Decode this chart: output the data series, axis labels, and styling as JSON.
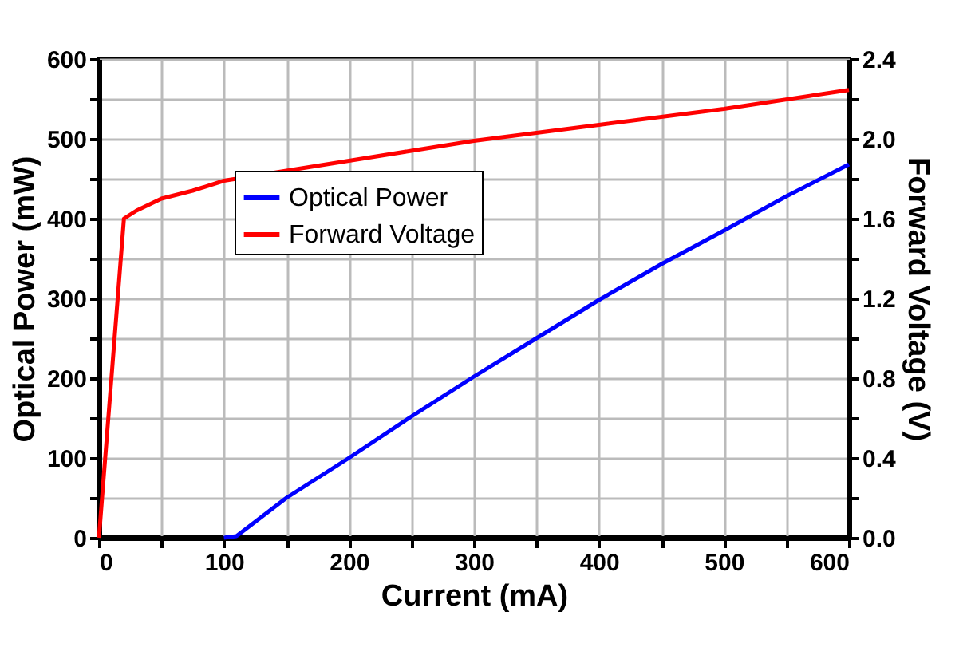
{
  "chart_data": {
    "type": "line",
    "xlabel": "Current (mA)",
    "ylabel": "Optical Power (mW)",
    "y2label": "Forward Voltage (V)",
    "xlim": [
      0,
      600
    ],
    "xticks": [
      0,
      {
        "value": 50,
        "label": null
      },
      100,
      {
        "value": 150,
        "label": null
      },
      200,
      {
        "value": 250,
        "label": null
      },
      300,
      {
        "value": 350,
        "label": null
      },
      400,
      {
        "value": 450,
        "label": null
      },
      500,
      {
        "value": 550,
        "label": null
      },
      600
    ],
    "ylim": [
      0,
      600
    ],
    "yticks": [
      0,
      {
        "value": 50,
        "label": null
      },
      100,
      {
        "value": 150,
        "label": null
      },
      200,
      {
        "value": 250,
        "label": null
      },
      300,
      {
        "value": 350,
        "label": null
      },
      400,
      {
        "value": 450,
        "label": null
      },
      500,
      {
        "value": 550,
        "label": null
      },
      600
    ],
    "y2lim": [
      0,
      2.4
    ],
    "y2ticks": [
      {
        "value": 0,
        "label": "0.0"
      },
      {
        "value": 0.2,
        "label": null
      },
      0.4,
      {
        "value": 0.6,
        "label": null
      },
      0.8,
      {
        "value": 1.0,
        "label": null
      },
      1.2,
      {
        "value": 1.4,
        "label": null
      },
      1.6,
      {
        "value": 1.8,
        "label": null
      },
      {
        "value": 2.0,
        "label": "2.0"
      },
      {
        "value": 2.2,
        "label": null
      },
      2.4
    ],
    "grid": true,
    "legend": "top left",
    "line_style": "solid",
    "marker": "none",
    "series": [
      {
        "name": "Optical Power",
        "color": "#0000ff",
        "x": [
          100,
          110,
          150,
          200,
          250,
          300,
          350,
          400,
          450,
          500,
          550,
          600
        ],
        "values": [
          0,
          2,
          50,
          100,
          152,
          202,
          250,
          298,
          343,
          385,
          428,
          468
        ]
      },
      {
        "name": "Forward Voltage",
        "color": "#ff0000",
        "axis": "y2",
        "x": [
          0,
          20,
          30,
          50,
          75,
          100,
          150,
          200,
          250,
          300,
          400,
          500,
          600
        ],
        "values": [
          0,
          1.6,
          1.64,
          1.7,
          1.74,
          1.79,
          1.84,
          1.89,
          1.94,
          1.99,
          2.07,
          2.15,
          2.245
        ]
      }
    ]
  }
}
